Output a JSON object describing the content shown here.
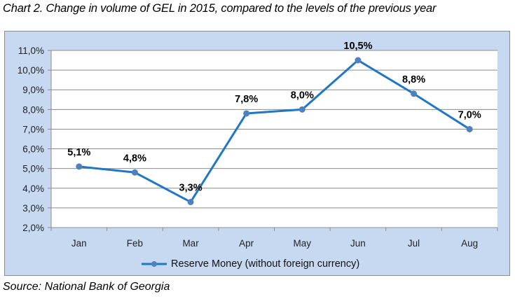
{
  "title": "Chart 2. Change in volume of GEL in 2015, compared to the levels of the previous year",
  "source": "Source: National Bank of Georgia",
  "colors": {
    "line": "#1f77c6",
    "marker": "#4f81bd",
    "background": "#c6d9f1",
    "plot": "#ffffff",
    "grid": "#8c8c8c"
  },
  "chart_data": {
    "type": "line",
    "title": "Chart 2. Change in volume of GEL in 2015, compared to the levels of the previous year",
    "xlabel": "",
    "ylabel": "",
    "categories": [
      "Jan",
      "Feb",
      "Mar",
      "Apr",
      "May",
      "Jun",
      "Jul",
      "Aug"
    ],
    "series": [
      {
        "name": "Reserve Money (without foreign currency)",
        "values": [
          5.1,
          4.8,
          3.3,
          7.8,
          8.0,
          10.5,
          8.8,
          7.0
        ],
        "labels": [
          "5,1%",
          "4,8%",
          "3,3%",
          "7,8%",
          "8,0%",
          "10,5%",
          "8,8%",
          "7,0%"
        ]
      }
    ],
    "ylim": [
      2.0,
      11.0
    ],
    "yticks": [
      2.0,
      3.0,
      4.0,
      5.0,
      6.0,
      7.0,
      8.0,
      9.0,
      10.0,
      11.0
    ],
    "ytick_labels": [
      "2,0%",
      "3,0%",
      "4,0%",
      "5,0%",
      "6,0%",
      "7,0%",
      "8,0%",
      "9,0%",
      "10,0%",
      "11,0%"
    ],
    "grid": true,
    "legend": "bottom-center"
  }
}
